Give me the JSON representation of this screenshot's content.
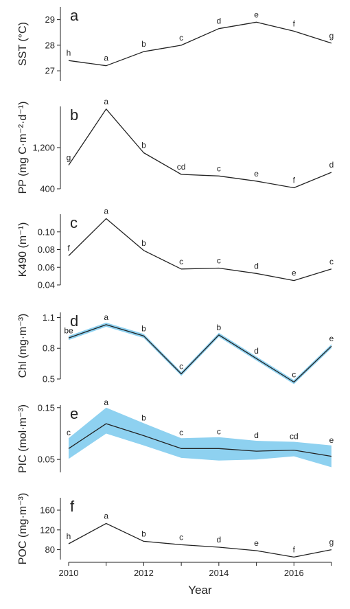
{
  "figure": {
    "xlabel": "Year",
    "x_ticks": [
      "2010",
      "2012",
      "2014",
      "2016"
    ]
  },
  "chart_data": [
    {
      "type": "line",
      "panel": "a",
      "ylabel": "SST (°C)",
      "y_ticks": [
        "27",
        "28",
        "29"
      ],
      "ylim": [
        26.6,
        29.5
      ],
      "x": [
        2010,
        2011,
        2012,
        2013,
        2014,
        2015,
        2016,
        2017
      ],
      "values": [
        27.4,
        27.2,
        27.75,
        28.0,
        28.65,
        28.9,
        28.55,
        28.08
      ],
      "labels": [
        "h",
        "a",
        "b",
        "c",
        "d",
        "e",
        "f",
        "g"
      ]
    },
    {
      "type": "line",
      "panel": "b",
      "ylabel": "PP (mg C·m⁻²·d⁻¹)",
      "y_ticks": [
        "400",
        "1,200"
      ],
      "ylim": [
        400,
        2000
      ],
      "x": [
        2010,
        2011,
        2012,
        2013,
        2014,
        2015,
        2016,
        2017
      ],
      "values": [
        860,
        1950,
        1100,
        680,
        650,
        550,
        420,
        720
      ],
      "labels": [
        "g",
        "a",
        "b",
        "cd",
        "c",
        "e",
        "f",
        "d"
      ]
    },
    {
      "type": "line",
      "panel": "c",
      "ylabel": "K490 (m⁻¹)",
      "y_ticks": [
        "0.04",
        "0.06",
        "0.08",
        "0.10"
      ],
      "ylim": [
        0.04,
        0.12
      ],
      "x": [
        2010,
        2011,
        2012,
        2013,
        2014,
        2015,
        2016,
        2017
      ],
      "values": [
        0.073,
        0.115,
        0.079,
        0.058,
        0.059,
        0.053,
        0.045,
        0.058
      ],
      "labels": [
        "f",
        "a",
        "b",
        "c",
        "c",
        "d",
        "e",
        "c"
      ]
    },
    {
      "type": "area",
      "panel": "d",
      "ylabel": "Chl (mg·m⁻³)",
      "y_ticks": [
        "0.5",
        "0.8",
        "1.1"
      ],
      "ylim": [
        0.5,
        1.15
      ],
      "x": [
        2010,
        2011,
        2012,
        2013,
        2014,
        2015,
        2016,
        2017
      ],
      "values": [
        0.9,
        1.03,
        0.92,
        0.55,
        0.93,
        0.7,
        0.47,
        0.82
      ],
      "lower": [
        0.88,
        1.01,
        0.9,
        0.53,
        0.91,
        0.68,
        0.45,
        0.8
      ],
      "upper": [
        0.92,
        1.05,
        0.94,
        0.57,
        0.95,
        0.72,
        0.49,
        0.84
      ],
      "band_color": "#8ed1f0",
      "labels": [
        "be",
        "a",
        "b",
        "c",
        "b",
        "d",
        "c",
        "e"
      ]
    },
    {
      "type": "area",
      "panel": "e",
      "ylabel": "PIC (mol·m⁻³)",
      "y_ticks": [
        "0.05",
        "0.15"
      ],
      "ylim": [
        0.025,
        0.155
      ],
      "x": [
        2010,
        2011,
        2012,
        2013,
        2014,
        2015,
        2016,
        2017
      ],
      "values": [
        0.071,
        0.119,
        0.096,
        0.071,
        0.071,
        0.066,
        0.068,
        0.056
      ],
      "lower": [
        0.051,
        0.1,
        0.077,
        0.053,
        0.048,
        0.05,
        0.056,
        0.035
      ],
      "upper": [
        0.091,
        0.15,
        0.12,
        0.091,
        0.093,
        0.086,
        0.084,
        0.077
      ],
      "band_color": "#8ed1f0",
      "labels": [
        "c",
        "a",
        "b",
        "c",
        "c",
        "d",
        "cd",
        "e"
      ]
    },
    {
      "type": "line",
      "panel": "f",
      "ylabel": "POC (mg·m⁻³)",
      "y_ticks": [
        "80",
        "120",
        "160"
      ],
      "ylim": [
        60,
        185
      ],
      "x": [
        2010,
        2011,
        2012,
        2013,
        2014,
        2015,
        2016,
        2017
      ],
      "values": [
        92,
        133,
        97,
        90,
        85,
        78,
        65,
        80
      ],
      "labels": [
        "h",
        "a",
        "b",
        "c",
        "d",
        "e",
        "f",
        "g"
      ]
    }
  ]
}
